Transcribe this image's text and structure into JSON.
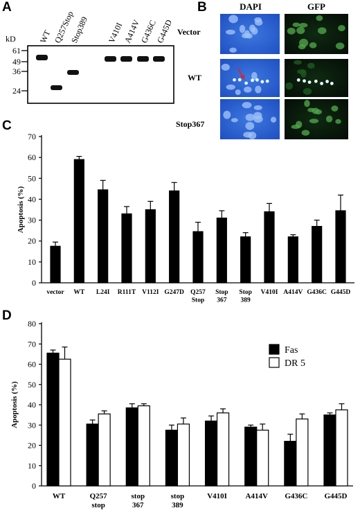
{
  "panels": {
    "a": "A",
    "b": "B",
    "c": "C",
    "d": "D"
  },
  "blot": {
    "unit": "kD",
    "markers": [
      "61",
      "49",
      "36",
      "24"
    ],
    "lanes": [
      "WT",
      "Q257Stop",
      "Stop389",
      "V410I",
      "A414V",
      "G436C",
      "G445D"
    ]
  },
  "micro": {
    "col_labels": [
      "DAPI",
      "GFP"
    ],
    "row_labels": [
      "Vector",
      "WT",
      "Stop367"
    ]
  },
  "chart_data": [
    {
      "type": "bar",
      "ylabel": "Apoptosis (%)",
      "ylim": [
        0,
        70
      ],
      "yticks": [
        "0",
        "10",
        "20",
        "30",
        "40",
        "50",
        "60",
        "70"
      ],
      "categories": [
        "vector",
        "WT",
        "L24I",
        "R111T",
        "V112I",
        "G247D",
        "Q257\nStop",
        "Stop\n367",
        "Stop\n389",
        "V410I",
        "A414V",
        "G436C",
        "G445D"
      ],
      "series": [
        {
          "values": [
            17.5,
            59,
            44.5,
            33,
            35,
            44,
            24.5,
            31,
            22,
            34,
            22,
            27,
            34.5
          ],
          "errors": [
            2,
            1.5,
            4.5,
            3.5,
            4,
            4,
            4.5,
            3.5,
            2,
            4,
            1,
            3,
            7.5
          ],
          "color": "#000000"
        }
      ]
    },
    {
      "type": "bar",
      "ylabel": "Apoptosis (%)",
      "ylim": [
        0,
        80
      ],
      "yticks": [
        "0",
        "10",
        "20",
        "30",
        "40",
        "50",
        "60",
        "70",
        "80"
      ],
      "categories": [
        "WT",
        "Q257\nstop",
        "stop\n367",
        "stop\n389",
        "V410I",
        "A414V",
        "G436C",
        "G445D"
      ],
      "legend_position": "top-right",
      "series": [
        {
          "name": "Fas",
          "values": [
            65.5,
            30.5,
            38.5,
            27.5,
            32,
            29,
            22,
            35
          ],
          "errors": [
            1.5,
            2,
            2,
            2.5,
            2.5,
            1,
            3.5,
            1
          ],
          "color": "#000000"
        },
        {
          "name": "DR 5",
          "values": [
            62.5,
            35.5,
            39.5,
            30.5,
            36,
            27.5,
            33,
            37.5
          ],
          "errors": [
            6,
            1.5,
            1,
            3,
            2,
            3,
            2.5,
            3
          ],
          "color": "#ffffff"
        }
      ]
    }
  ]
}
